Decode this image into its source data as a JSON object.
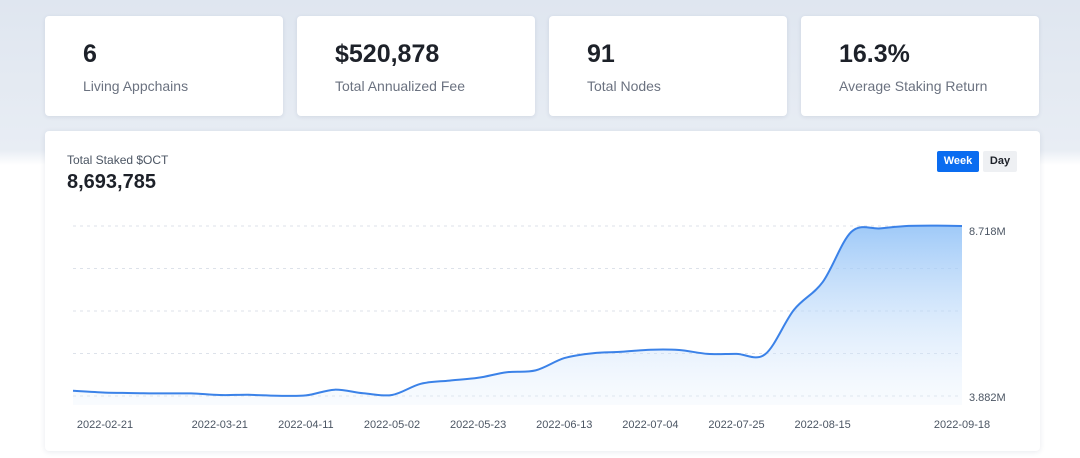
{
  "stats": [
    {
      "value": "6",
      "label": "Living Appchains"
    },
    {
      "value": "$520,878",
      "label": "Total Annualized Fee"
    },
    {
      "value": "91",
      "label": "Total Nodes"
    },
    {
      "value": "16.3%",
      "label": "Average Staking Return"
    }
  ],
  "chart": {
    "title": "Total Staked $OCT",
    "total": "8,693,785",
    "toggle_week": "Week",
    "toggle_day": "Day",
    "max_label": "8.718M",
    "min_label": "3.882M"
  },
  "colors": {
    "line": "#3b82e8",
    "accent": "#0a6cf0"
  },
  "chart_data": {
    "type": "area",
    "title": "Total Staked $OCT",
    "xlabel": "",
    "ylabel": "",
    "x_ticks": [
      "2022-02-21",
      "2022-03-21",
      "2022-04-11",
      "2022-05-02",
      "2022-05-23",
      "2022-06-13",
      "2022-07-04",
      "2022-07-25",
      "2022-08-15",
      "2022-09-18"
    ],
    "ylim": [
      3.882,
      8.718
    ],
    "y_unit": "M",
    "grid": true,
    "series": [
      {
        "x": [
          "2022-02-14",
          "2022-02-21",
          "2022-02-28",
          "2022-03-07",
          "2022-03-14",
          "2022-03-21",
          "2022-03-28",
          "2022-04-04",
          "2022-04-11",
          "2022-04-18",
          "2022-04-25",
          "2022-05-02",
          "2022-05-09",
          "2022-05-16",
          "2022-05-23",
          "2022-05-30",
          "2022-06-06",
          "2022-06-13",
          "2022-06-20",
          "2022-06-27",
          "2022-07-04",
          "2022-07-11",
          "2022-07-18",
          "2022-07-25",
          "2022-08-01",
          "2022-08-08",
          "2022-08-15",
          "2022-08-22",
          "2022-08-29",
          "2022-09-05",
          "2022-09-12",
          "2022-09-18"
        ],
        "values": [
          4.03,
          3.98,
          3.965,
          3.955,
          3.955,
          3.91,
          3.915,
          3.89,
          3.9,
          4.06,
          3.96,
          3.91,
          4.23,
          4.32,
          4.4,
          4.56,
          4.61,
          4.96,
          5.1,
          5.14,
          5.2,
          5.19,
          5.08,
          5.08,
          5.07,
          6.33,
          7.12,
          8.55,
          8.65,
          8.72,
          8.73,
          8.718
        ]
      }
    ]
  }
}
